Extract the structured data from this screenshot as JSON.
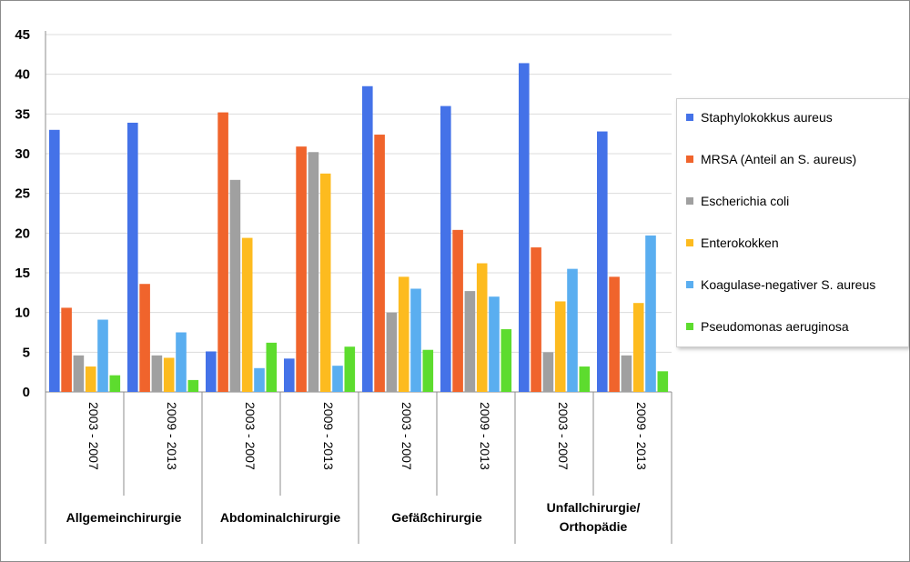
{
  "chart_data": {
    "type": "bar",
    "title": "",
    "xlabel": "",
    "ylabel": "",
    "ylim": [
      0,
      45
    ],
    "yticks": [
      0,
      5,
      10,
      15,
      20,
      25,
      30,
      35,
      40,
      45
    ],
    "grid": true,
    "legend_position": "right",
    "groups": [
      {
        "label": "Allgemeinchirurgie",
        "periods": [
          "2003 - 2007",
          "2009 - 2013"
        ]
      },
      {
        "label": "Abdominalchirurgie",
        "periods": [
          "2003 - 2007",
          "2009 - 2013"
        ]
      },
      {
        "label": "Gefäßchirurgie",
        "periods": [
          "2003 - 2007",
          "2009 - 2013"
        ]
      },
      {
        "label": "Unfallchirurgie/ Orthopädie",
        "label_lines": [
          "Unfallchirurgie/",
          "Orthopädie"
        ],
        "periods": [
          "2003 - 2007",
          "2009 - 2013"
        ]
      }
    ],
    "series": [
      {
        "name": "Staphylokokkus aureus",
        "color": "#4472e8",
        "values": [
          33.0,
          33.9,
          5.1,
          4.2,
          38.5,
          36.0,
          41.4,
          32.8
        ]
      },
      {
        "name": "MRSA (Anteil an S. aureus)",
        "color": "#f0642c",
        "values": [
          10.6,
          13.6,
          35.2,
          30.9,
          32.4,
          20.4,
          18.2,
          14.5
        ]
      },
      {
        "name": "Escherichia coli",
        "color": "#a0a0a0",
        "values": [
          4.6,
          4.6,
          26.7,
          30.2,
          10.0,
          12.7,
          5.0,
          4.6
        ]
      },
      {
        "name": "Enterokokken",
        "color": "#fdbb1f",
        "values": [
          3.2,
          4.3,
          19.4,
          27.5,
          14.5,
          16.2,
          11.4,
          11.2
        ]
      },
      {
        "name": "Koagulase-negativer S. aureus",
        "color": "#5aaef0",
        "values": [
          9.1,
          7.5,
          3.0,
          3.3,
          13.0,
          12.0,
          15.5,
          19.7
        ]
      },
      {
        "name": "Pseudomonas aeruginosa",
        "color": "#5ddc2e",
        "values": [
          2.1,
          1.5,
          6.2,
          5.7,
          5.3,
          7.9,
          3.2,
          2.6
        ]
      }
    ]
  }
}
